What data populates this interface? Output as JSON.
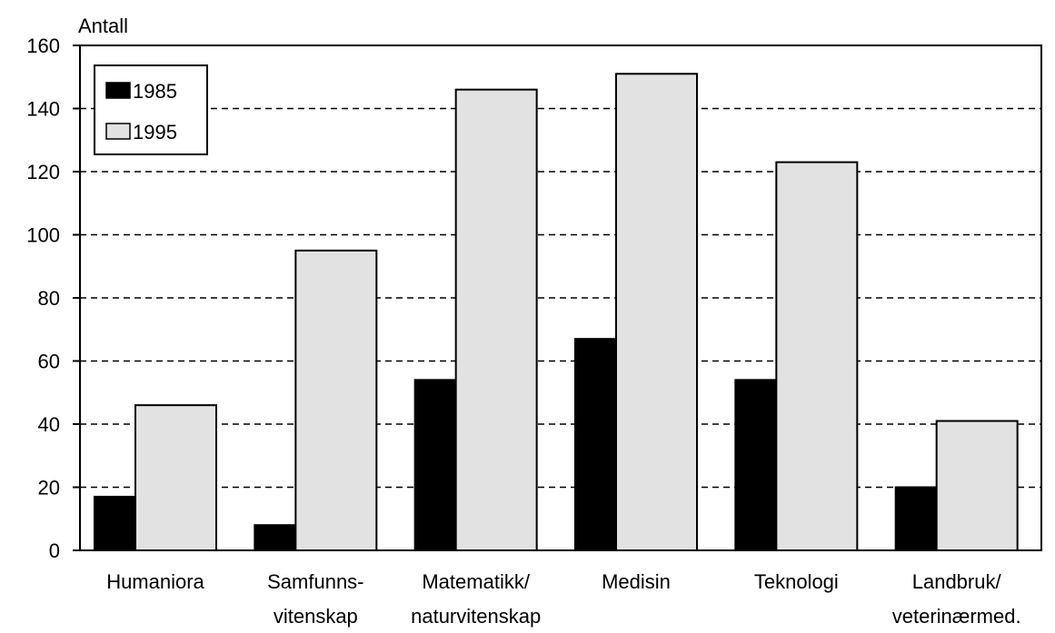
{
  "chart_data": {
    "type": "bar",
    "ylabel": "Antall",
    "ylim": [
      0,
      160
    ],
    "yticks": [
      "0",
      "20",
      "40",
      "60",
      "80",
      "100",
      "120",
      "140",
      "160"
    ],
    "categories": [
      [
        "Humaniora"
      ],
      [
        "Samfunns-",
        "vitenskap"
      ],
      [
        "Matematikk/",
        "naturvitenskap"
      ],
      [
        "Medisin"
      ],
      [
        "Teknologi"
      ],
      [
        "Landbruk/",
        "veterinærmed."
      ]
    ],
    "series": [
      {
        "name": "1985",
        "color": "#000000",
        "values": [
          17,
          8,
          54,
          67,
          54,
          20
        ]
      },
      {
        "name": "1995",
        "color": "#e2e2e2",
        "values": [
          46,
          95,
          146,
          151,
          123,
          41
        ]
      }
    ],
    "grid": true,
    "legend_position": "top-left"
  }
}
